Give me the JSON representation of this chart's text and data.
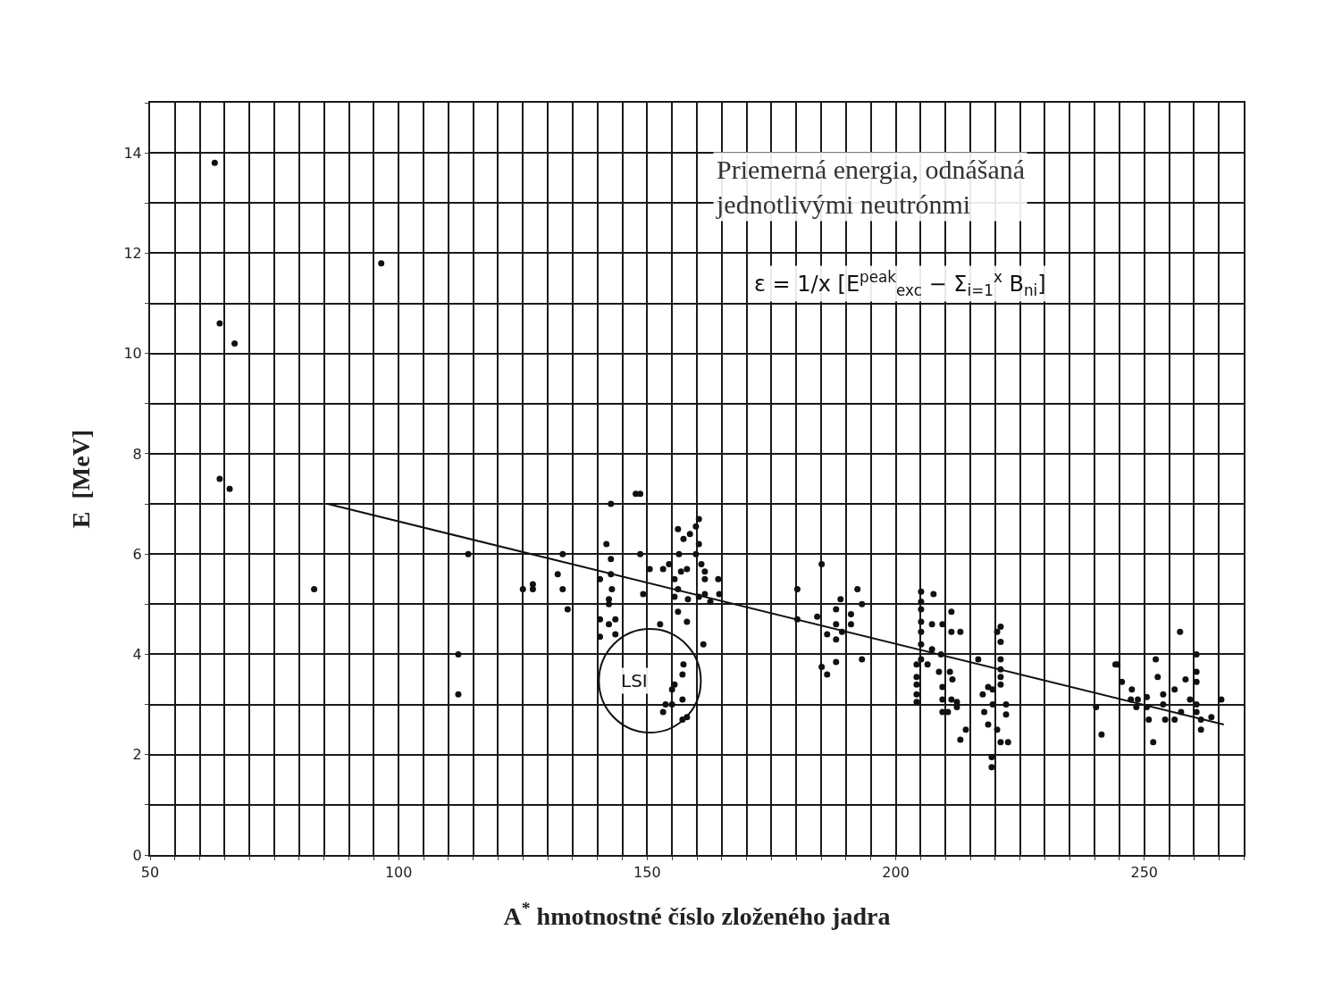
{
  "chart_data": {
    "type": "scatter",
    "xlabel": "A$^{*}$ hmotnostné číslo zloženého jadra",
    "ylabel": "E  [MeV]",
    "xlim": [
      50,
      270
    ],
    "ylim": [
      0,
      15
    ],
    "xticks": [
      50,
      {
        "value": 55,
        "label": null
      },
      {
        "value": 60,
        "label": null
      },
      {
        "value": 65,
        "label": null
      },
      {
        "value": 70,
        "label": null
      },
      {
        "value": 75,
        "label": null
      },
      {
        "value": 80,
        "label": null
      },
      {
        "value": 85,
        "label": null
      },
      {
        "value": 90,
        "label": null
      },
      {
        "value": 95,
        "label": null
      },
      100,
      {
        "value": 105,
        "label": null
      },
      {
        "value": 110,
        "label": null
      },
      {
        "value": 115,
        "label": null
      },
      {
        "value": 120,
        "label": null
      },
      {
        "value": 125,
        "label": null
      },
      {
        "value": 130,
        "label": null
      },
      {
        "value": 135,
        "label": null
      },
      {
        "value": 140,
        "label": null
      },
      {
        "value": 145,
        "label": null
      },
      150,
      {
        "value": 155,
        "label": null
      },
      {
        "value": 160,
        "label": null
      },
      {
        "value": 165,
        "label": null
      },
      {
        "value": 170,
        "label": null
      },
      {
        "value": 175,
        "label": null
      },
      {
        "value": 180,
        "label": null
      },
      {
        "value": 185,
        "label": null
      },
      {
        "value": 190,
        "label": null
      },
      {
        "value": 195,
        "label": null
      },
      200,
      {
        "value": 205,
        "label": null
      },
      {
        "value": 210,
        "label": null
      },
      {
        "value": 215,
        "label": null
      },
      {
        "value": 220,
        "label": null
      },
      {
        "value": 225,
        "label": null
      },
      {
        "value": 230,
        "label": null
      },
      {
        "value": 235,
        "label": null
      },
      {
        "value": 240,
        "label": null
      },
      {
        "value": 245,
        "label": null
      },
      250,
      {
        "value": 255,
        "label": null
      },
      {
        "value": 260,
        "label": null
      },
      {
        "value": 265,
        "label": null
      },
      {
        "value": 270,
        "label": null
      }
    ],
    "yticks": [
      0,
      {
        "value": 1,
        "label": null
      },
      2,
      {
        "value": 3,
        "label": null
      },
      4,
      {
        "value": 5,
        "label": null
      },
      6,
      {
        "value": 7,
        "label": null
      },
      8,
      {
        "value": 9,
        "label": null
      },
      10,
      {
        "value": 11,
        "label": null
      },
      12,
      {
        "value": 13,
        "label": null
      },
      14,
      {
        "value": 15,
        "label": null
      }
    ],
    "grid": true,
    "marker": "circle",
    "series": [
      {
        "color": "#111111",
        "x": [
          63,
          96.5,
          64,
          67,
          64,
          66,
          83,
          114,
          112,
          112,
          125,
          127,
          127,
          132,
          133,
          133,
          134,
          142.7,
          147.7,
          148.6,
          141.8,
          142.7,
          148.6,
          140.5,
          142.7,
          142.9,
          142.3,
          142.3,
          140.5,
          143.6,
          142.3,
          143.6,
          140.5,
          150.5,
          149.2,
          152.6,
          153.2,
          154.4,
          156.2,
          157.3,
          158.6,
          159.8,
          160.4,
          160.4,
          156.4,
          156.8,
          158,
          155.5,
          159.8,
          160.9,
          161.6,
          164.3,
          161.6,
          156.2,
          155.5,
          158.2,
          160.4,
          161.6,
          162.7,
          164.5,
          156.2,
          158,
          161.3,
          157.3,
          157.1,
          155.5,
          155,
          157.1,
          153.7,
          155,
          153.2,
          157.1,
          158,
          185.1,
          180.2,
          180.2,
          184.2,
          188.9,
          192.3,
          193.2,
          188,
          191,
          191,
          188,
          186.2,
          188,
          189.2,
          193.2,
          188,
          185.1,
          186.2,
          205.1,
          205.1,
          205.1,
          205.1,
          205.1,
          205.1,
          205.1,
          204.2,
          204.2,
          204.2,
          204.2,
          204.2,
          207.6,
          207.3,
          209.4,
          211.2,
          211.2,
          213,
          207.3,
          209.1,
          206.4,
          208.7,
          210.9,
          211.4,
          209.4,
          209.4,
          211.2,
          212.3,
          209.4,
          210.5,
          212.3,
          214.1,
          213,
          216.6,
          217.5,
          218.6,
          219.5,
          217.8,
          219.5,
          222.2,
          222.2,
          218.6,
          220.4,
          221.1,
          222.6,
          219.3,
          219.3,
          221.1,
          221.1,
          221.1,
          221.1,
          221.1,
          221.1,
          220.4,
          244.2,
          257.2,
          244.6,
          245.5,
          247.5,
          252.3,
          252.7,
          247.3,
          248.7,
          248.4,
          250.5,
          250.5,
          250.9,
          253.8,
          253.8,
          254.2,
          256.1,
          256.1,
          258.3,
          257.4,
          259.2,
          260.5,
          260.5,
          260.5,
          260.5,
          260.5,
          261.4,
          261.4,
          263.5,
          265.5,
          251.8,
          240.3,
          241.4
        ],
        "values": [
          13.8,
          11.8,
          10.6,
          10.2,
          7.5,
          7.3,
          5.3,
          6,
          4,
          3.2,
          5.3,
          5.4,
          5.3,
          5.6,
          6,
          5.3,
          4.9,
          7,
          7.2,
          7.2,
          6.2,
          5.9,
          6,
          5.5,
          5.6,
          5.3,
          5.1,
          5,
          4.7,
          4.7,
          4.6,
          4.4,
          4.35,
          5.7,
          5.2,
          4.6,
          5.7,
          5.8,
          6.5,
          6.3,
          6.4,
          6.55,
          6.7,
          6.2,
          6,
          5.65,
          5.7,
          5.5,
          6,
          5.8,
          5.65,
          5.5,
          5.5,
          5.3,
          5.15,
          5.1,
          5.15,
          5.2,
          5.05,
          5.2,
          4.85,
          4.65,
          4.2,
          3.8,
          3.6,
          3.4,
          3.3,
          3.1,
          3,
          3,
          2.85,
          2.7,
          2.75,
          5.8,
          5.3,
          4.7,
          4.75,
          5.1,
          5.3,
          5,
          4.9,
          4.8,
          4.6,
          4.6,
          4.4,
          4.3,
          4.45,
          3.9,
          3.85,
          3.75,
          3.6,
          5.25,
          5.05,
          4.9,
          4.65,
          4.45,
          4.2,
          3.9,
          3.8,
          3.55,
          3.4,
          3.2,
          3.05,
          5.2,
          4.6,
          4.6,
          4.85,
          4.45,
          4.45,
          4.1,
          4,
          3.8,
          3.65,
          3.65,
          3.5,
          3.35,
          3.1,
          3.1,
          3.05,
          2.85,
          2.85,
          2.95,
          2.5,
          2.3,
          3.9,
          3.2,
          3.35,
          3.3,
          2.85,
          3,
          3,
          2.8,
          2.6,
          2.5,
          2.25,
          2.25,
          1.95,
          1.75,
          4.55,
          4.25,
          3.9,
          3.7,
          3.55,
          3.4,
          4.45,
          3.8,
          4.45,
          3.8,
          3.45,
          3.3,
          3.9,
          3.55,
          3.1,
          3.1,
          2.95,
          3.15,
          2.95,
          2.7,
          3.2,
          3,
          2.7,
          2.7,
          3.3,
          3.5,
          2.85,
          3.1,
          4,
          3.65,
          3.45,
          3,
          2.85,
          2.7,
          2.5,
          2.75,
          3.1,
          2.25,
          2.95,
          2.4
        ]
      },
      {
        "type": "line",
        "color": "#111111",
        "x": [
          85.7,
          266
        ],
        "values": [
          7,
          2.6
        ],
        "marker": "none",
        "line_style": "solid"
      }
    ],
    "annotations": [
      "Priemerná energia, odnášaná\njednotlivými neutrónmi",
      "ε = 1/x [E$^{peak}$$_{exc}$ − Σ$_{i=1}$$^{x}$ B$_{ni}$]",
      "LSI"
    ]
  }
}
